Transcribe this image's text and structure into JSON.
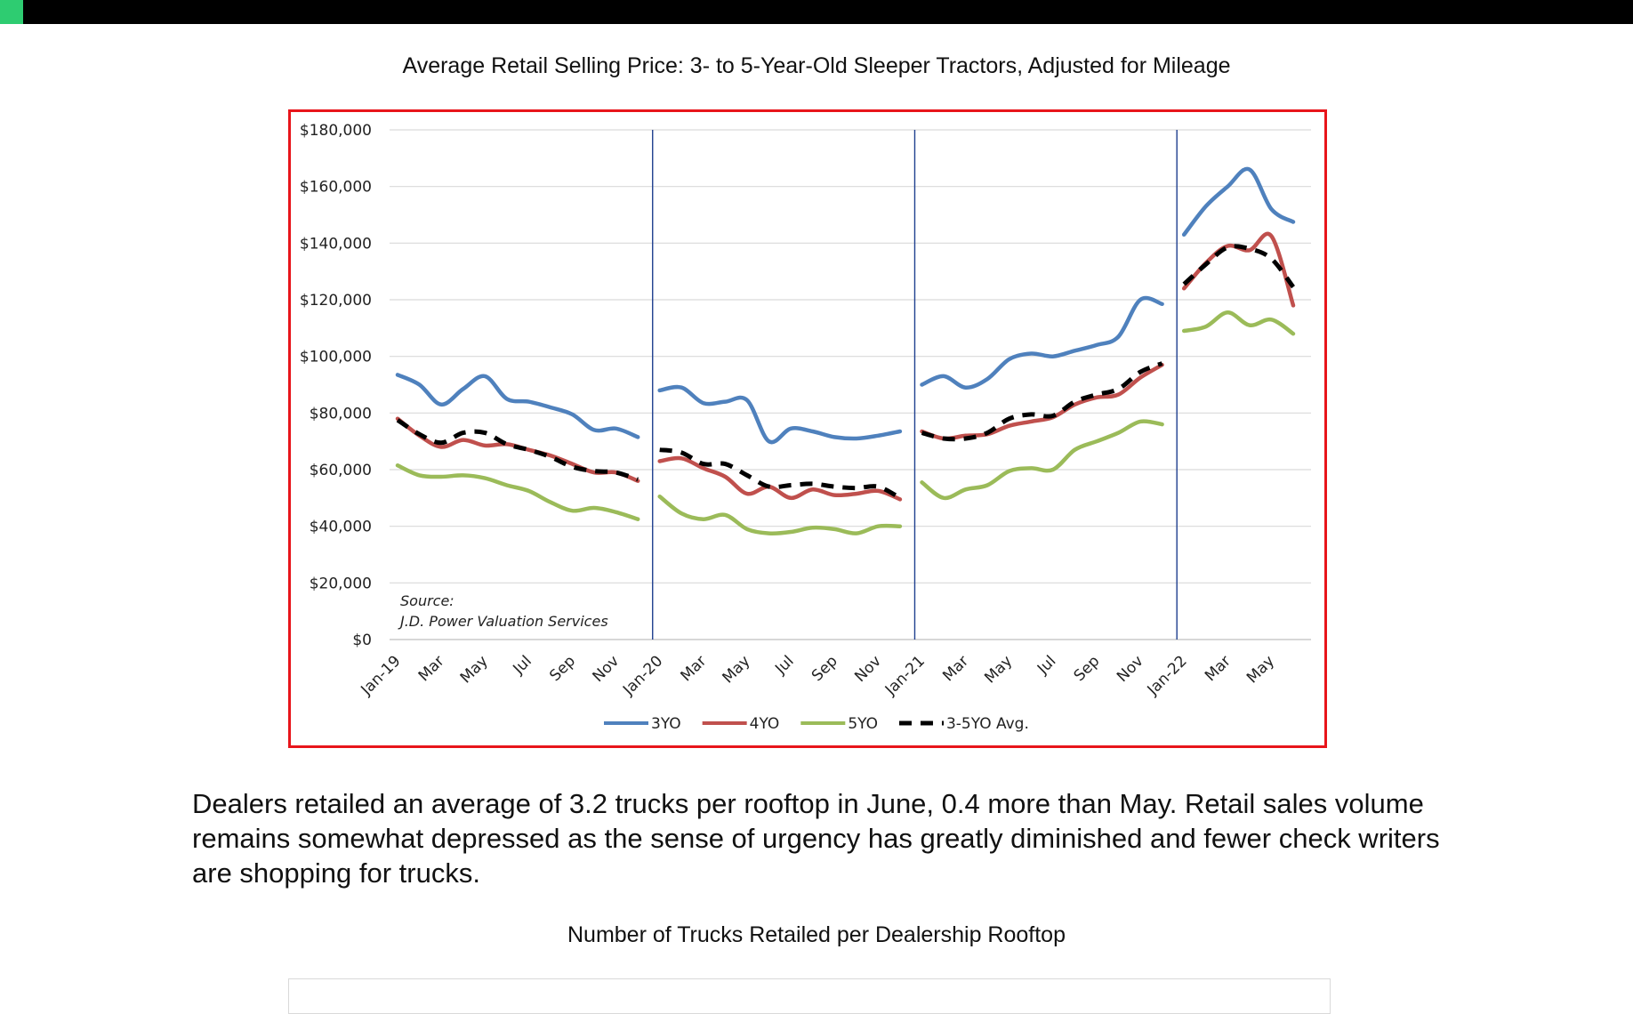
{
  "header": {
    "accent_color": "#2ecc71",
    "bar_color": "#000000"
  },
  "chart_title": "Average Retail Selling Price: 3- to 5-Year-Old Sleeper Tractors, Adjusted for Mileage",
  "paragraph": "Dealers retailed an average of 3.2 trucks per rooftop in June, 0.4 more than May. Retail sales volume remains somewhat depressed as the sense of urgency has greatly diminished and fewer check writers are shopping for trucks.",
  "chart2_title": "Number of Trucks Retailed per Dealership Rooftop",
  "chart_data": {
    "type": "line",
    "title": "",
    "xlabel": "",
    "ylabel": "",
    "ylim": [
      0,
      180000
    ],
    "yticks": [
      0,
      20000,
      40000,
      60000,
      80000,
      100000,
      120000,
      140000,
      160000,
      180000
    ],
    "ytick_labels": [
      "$0",
      "$20,000",
      "$40,000",
      "$60,000",
      "$80,000",
      "$100,000",
      "$120,000",
      "$140,000",
      "$160,000",
      "$180,000"
    ],
    "x": [
      "Jan-19",
      "Feb-19",
      "Mar-19",
      "Apr-19",
      "May-19",
      "Jun-19",
      "Jul-19",
      "Aug-19",
      "Sep-19",
      "Oct-19",
      "Nov-19",
      "Dec-19",
      "Jan-20",
      "Feb-20",
      "Mar-20",
      "Apr-20",
      "May-20",
      "Jun-20",
      "Jul-20",
      "Aug-20",
      "Sep-20",
      "Oct-20",
      "Nov-20",
      "Dec-20",
      "Jan-21",
      "Feb-21",
      "Mar-21",
      "Apr-21",
      "May-21",
      "Jun-21",
      "Jul-21",
      "Aug-21",
      "Sep-21",
      "Oct-21",
      "Nov-21",
      "Dec-21",
      "Jan-22",
      "Feb-22",
      "Mar-22",
      "Apr-22",
      "May-22",
      "Jun-22"
    ],
    "xtick_labels": [
      "Jan-19",
      "Mar",
      "May",
      "Jul",
      "Sep",
      "Nov",
      "Jan-20",
      "Mar",
      "May",
      "Jul",
      "Sep",
      "Nov",
      "Jan-21",
      "Mar",
      "May",
      "Jul",
      "Sep",
      "Nov",
      "Jan-22",
      "Mar",
      "May"
    ],
    "year_dividers": [
      "Jan-20",
      "Jan-21",
      "Jan-22"
    ],
    "grid": "horizontal",
    "legend_position": "bottom",
    "annotation": [
      "Source:",
      "J.D. Power Valuation Services"
    ],
    "series": [
      {
        "name": "3YO",
        "color": "#4f81bd",
        "dash": false,
        "segments": [
          [
            93500,
            90000,
            83000,
            88500,
            93000,
            85000,
            84000,
            82000,
            79500,
            74000,
            74500,
            71500
          ],
          [
            88000,
            89000,
            83500,
            84000,
            84500,
            70000,
            74500,
            73500,
            71500,
            71000,
            72000,
            73500
          ],
          [
            90000,
            93000,
            89000,
            92000,
            99000,
            101000,
            100000,
            102000,
            104000,
            107000,
            120000,
            118500
          ],
          [
            143000,
            153000,
            160000,
            166000,
            152000,
            147500
          ]
        ]
      },
      {
        "name": "4YO",
        "color": "#c0504d",
        "dash": false,
        "segments": [
          [
            78000,
            72000,
            68000,
            70500,
            68500,
            69000,
            67000,
            65000,
            62000,
            59000,
            59000,
            56000
          ],
          [
            63000,
            64000,
            60500,
            57500,
            51500,
            54000,
            50000,
            53000,
            51000,
            51500,
            52500,
            49500
          ],
          [
            73500,
            71000,
            72000,
            72500,
            75500,
            77000,
            78500,
            83000,
            85500,
            86500,
            92500,
            97000
          ],
          [
            124000,
            133000,
            139000,
            137500,
            142500,
            118000
          ]
        ]
      },
      {
        "name": "5YO",
        "color": "#9bbb59",
        "dash": false,
        "segments": [
          [
            61500,
            58000,
            57500,
            58000,
            57000,
            54500,
            52500,
            48500,
            45500,
            46500,
            45000,
            42500
          ],
          [
            50500,
            44500,
            42500,
            44000,
            39000,
            37500,
            38000,
            39500,
            39000,
            37500,
            40000,
            40000
          ],
          [
            55500,
            50000,
            53000,
            54500,
            59500,
            60500,
            60000,
            67000,
            70000,
            73000,
            77000,
            76000
          ],
          [
            109000,
            110500,
            115500,
            111000,
            113000,
            108000
          ]
        ]
      },
      {
        "name": "3-5YO Avg.",
        "color": "#000000",
        "dash": true,
        "segments": [
          [
            77500,
            72500,
            69500,
            73000,
            73000,
            69000,
            67000,
            64500,
            61000,
            59500,
            59000,
            56500
          ],
          [
            67000,
            66000,
            62000,
            62000,
            58000,
            54000,
            54500,
            55000,
            54000,
            53500,
            54000,
            50000
          ],
          [
            73000,
            71000,
            71000,
            73000,
            78000,
            79500,
            79000,
            84000,
            86500,
            88500,
            94500,
            97500
          ],
          [
            125500,
            132500,
            138500,
            138000,
            134500,
            124500
          ]
        ]
      }
    ]
  }
}
